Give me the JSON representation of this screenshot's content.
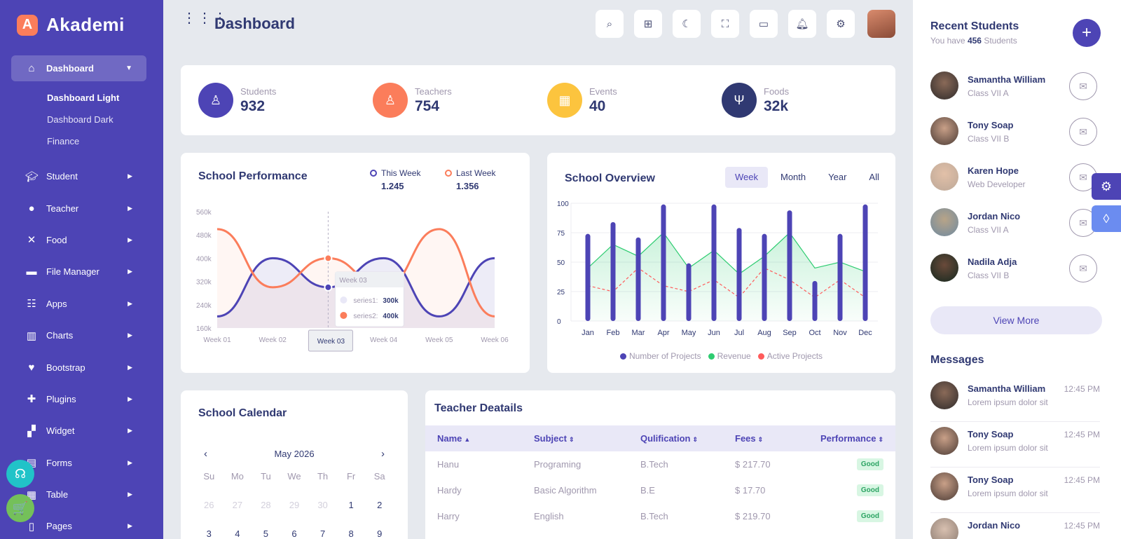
{
  "app": {
    "logo_letter": "A",
    "name": "Akademi"
  },
  "sidebar": {
    "active": {
      "label": "Dashboard",
      "icon": "home-icon"
    },
    "subitems": [
      "Dashboard Light",
      "Dashboard Dark",
      "Finance"
    ],
    "items": [
      {
        "label": "Student",
        "icon": "graduation-cap-icon"
      },
      {
        "label": "Teacher",
        "icon": "user-icon"
      },
      {
        "label": "Food",
        "icon": "utensils-icon"
      },
      {
        "label": "File Manager",
        "icon": "folder-icon"
      },
      {
        "label": "Apps",
        "icon": "apps-icon"
      },
      {
        "label": "Charts",
        "icon": "chart-icon"
      },
      {
        "label": "Bootstrap",
        "icon": "heart-icon"
      },
      {
        "label": "Plugins",
        "icon": "puzzle-icon"
      },
      {
        "label": "Widget",
        "icon": "widget-icon"
      },
      {
        "label": "Forms",
        "icon": "file-icon"
      },
      {
        "label": "Table",
        "icon": "table-icon"
      },
      {
        "label": "Pages",
        "icon": "page-icon"
      }
    ]
  },
  "header": {
    "title": "Dashboard"
  },
  "stats": [
    {
      "label": "Students",
      "value": "932",
      "color": "#4d44b5",
      "icon": "student-icon"
    },
    {
      "label": "Teachers",
      "value": "754",
      "color": "#fb7d5b",
      "icon": "teacher-icon"
    },
    {
      "label": "Events",
      "value": "40",
      "color": "#fcc43e",
      "icon": "calendar-icon"
    },
    {
      "label": "Foods",
      "value": "32k",
      "color": "#303972",
      "icon": "fork-knife-icon"
    }
  ],
  "performance": {
    "title": "School Performance",
    "this_week": {
      "label": "This Week",
      "value": "1.245",
      "color": "#4d44b5"
    },
    "last_week": {
      "label": "Last Week",
      "value": "1.356",
      "color": "#fb7d5b"
    },
    "tooltip": {
      "title": "Week 03",
      "s1_label": "series1:",
      "s1_value": "300k",
      "s2_label": "series2:",
      "s2_value": "400k",
      "x_label": "Week 03"
    }
  },
  "overview": {
    "title": "School Overview",
    "tabs": [
      "Week",
      "Month",
      "Year",
      "All"
    ],
    "legend": [
      {
        "label": "Number of Projects",
        "color": "#4d44b5"
      },
      {
        "label": "Revenue",
        "color": "#2ecc71"
      },
      {
        "label": "Active Projects",
        "color": "#ff5b5b"
      }
    ]
  },
  "chart_data": [
    {
      "type": "area",
      "title": "School Performance",
      "x": [
        "Week 01",
        "Week 02",
        "Week 03",
        "Week 04",
        "Week 05",
        "Week 06"
      ],
      "y_ticks": [
        "560k",
        "480k",
        "400k",
        "320k",
        "240k",
        "160k"
      ],
      "ylim": [
        160,
        560
      ],
      "series": [
        {
          "name": "This Week",
          "values": [
            200,
            400,
            300,
            400,
            200,
            400
          ]
        },
        {
          "name": "Last Week",
          "values": [
            500,
            300,
            400,
            300,
            500,
            200
          ]
        }
      ]
    },
    {
      "type": "bar",
      "title": "School Overview",
      "categories": [
        "Jan",
        "Feb",
        "Mar",
        "Apr",
        "May",
        "Jun",
        "Jul",
        "Aug",
        "Sep",
        "Oct",
        "Nov",
        "Dec"
      ],
      "y_ticks": [
        "100",
        "75",
        "50",
        "25",
        "0"
      ],
      "ylim": [
        0,
        100
      ],
      "series": [
        {
          "name": "Number of Projects",
          "values": [
            74,
            84,
            71,
            99,
            49,
            99,
            79,
            74,
            94,
            34,
            74,
            99
          ]
        },
        {
          "name": "Revenue",
          "values": [
            45,
            65,
            55,
            75,
            45,
            60,
            40,
            55,
            75,
            45,
            50,
            42
          ]
        },
        {
          "name": "Active Projects",
          "values": [
            30,
            25,
            45,
            30,
            25,
            35,
            20,
            45,
            35,
            20,
            35,
            20
          ]
        }
      ]
    }
  ],
  "calendar": {
    "title": "School Calendar",
    "month": "May 2026",
    "day_names": [
      "Su",
      "Mo",
      "Tu",
      "We",
      "Th",
      "Fr",
      "Sa"
    ],
    "week1_prev": [
      "26",
      "27",
      "28",
      "29",
      "30"
    ],
    "week1_cur": [
      "1",
      "2"
    ],
    "week2": [
      "3",
      "4",
      "5",
      "6",
      "7",
      "8",
      "9"
    ]
  },
  "teachers": {
    "title": "Teacher Deatails",
    "columns": [
      "Name",
      "Subject",
      "Qulification",
      "Fees",
      "Performance"
    ],
    "rows": [
      {
        "name": "Hanu",
        "subject": "Programing",
        "qual": "B.Tech",
        "fees": "$ 217.70",
        "perf": "Good"
      },
      {
        "name": "Hardy",
        "subject": "Basic Algorithm",
        "qual": "B.E",
        "fees": "$ 17.70",
        "perf": "Good"
      },
      {
        "name": "Harry",
        "subject": "English",
        "qual": "B.Tech",
        "fees": "$ 219.70",
        "perf": "Good"
      }
    ]
  },
  "recent": {
    "title": "Recent Students",
    "sub_prefix": "You have",
    "count": "456",
    "sub_suffix": "Students",
    "students": [
      {
        "name": "Samantha William",
        "class": "Class VII A"
      },
      {
        "name": "Tony Soap",
        "class": "Class VII B"
      },
      {
        "name": "Karen Hope",
        "class": "Web Developer"
      },
      {
        "name": "Jordan Nico",
        "class": "Class VII A"
      },
      {
        "name": "Nadila Adja",
        "class": "Class VII B"
      }
    ],
    "view_more": "View More"
  },
  "messages": {
    "title": "Messages",
    "items": [
      {
        "name": "Samantha William",
        "text": "Lorem ipsum dolor sit",
        "time": "12:45 PM"
      },
      {
        "name": "Tony Soap",
        "text": "Lorem ipsum dolor sit",
        "time": "12:45 PM"
      },
      {
        "name": "Tony Soap",
        "text": "Lorem ipsum dolor sit",
        "time": "12:45 PM"
      },
      {
        "name": "Jordan Nico",
        "text": "",
        "time": "12:45 PM"
      }
    ]
  }
}
